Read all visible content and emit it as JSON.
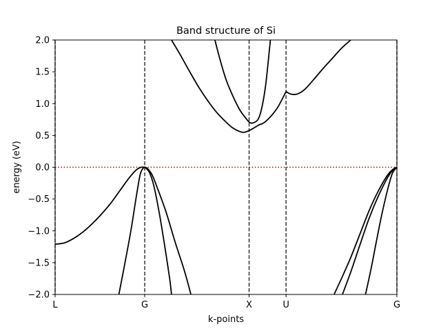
{
  "chart_data": {
    "type": "line",
    "title": "Band structure of Si",
    "xlabel": "k-points",
    "ylabel": "energy (eV)",
    "xlim": [
      0,
      3.7
    ],
    "ylim": [
      -2.0,
      2.0
    ],
    "yticks": [
      -2.0,
      -1.5,
      -1.0,
      -0.5,
      0.0,
      0.5,
      1.0,
      1.5,
      2.0
    ],
    "ytick_labels": [
      "−2.0",
      "−1.5",
      "−1.0",
      "−0.5",
      "0.0",
      "0.5",
      "1.0",
      "1.5",
      "2.0"
    ],
    "kpoints": [
      {
        "label": "L",
        "x": 0
      },
      {
        "label": "G",
        "x": 0.97
      },
      {
        "label": "X",
        "x": 2.1
      },
      {
        "label": "U",
        "x": 2.5
      },
      {
        "label": "G",
        "x": 3.7
      }
    ],
    "fermi_level": 0.0,
    "colors": {
      "bands": "#000000",
      "fermi": "#cc0000",
      "kpoint_lines": "#333333"
    },
    "series": [
      {
        "values": [
          [
            0,
            -1.21
          ],
          [
            0.1,
            -1.19
          ],
          [
            0.2,
            -1.12
          ],
          [
            0.3,
            -1.02
          ],
          [
            0.4,
            -0.89
          ],
          [
            0.5,
            -0.74
          ],
          [
            0.6,
            -0.57
          ],
          [
            0.7,
            -0.37
          ],
          [
            0.8,
            -0.17
          ],
          [
            0.88,
            -0.04
          ],
          [
            0.93,
            0.0
          ]
        ]
      },
      {
        "values": [
          [
            0.69,
            -2.0
          ],
          [
            0.75,
            -1.55
          ],
          [
            0.82,
            -1.0
          ],
          [
            0.88,
            -0.45
          ],
          [
            0.92,
            -0.12
          ],
          [
            0.95,
            -0.02
          ],
          [
            0.97,
            0.0
          ]
        ]
      },
      {
        "values": [
          [
            0.93,
            0.0
          ],
          [
            0.97,
            0.0
          ],
          [
            1.0,
            -0.02
          ],
          [
            1.05,
            -0.12
          ],
          [
            1.1,
            -0.3
          ],
          [
            1.2,
            -0.7
          ],
          [
            1.3,
            -1.18
          ],
          [
            1.4,
            -1.63
          ],
          [
            1.47,
            -2.0
          ]
        ]
      },
      {
        "values": [
          [
            0.97,
            0.0
          ],
          [
            1.02,
            -0.08
          ],
          [
            1.07,
            -0.3
          ],
          [
            1.13,
            -0.74
          ],
          [
            1.19,
            -1.27
          ],
          [
            1.24,
            -1.75
          ],
          [
            1.26,
            -2.0
          ]
        ]
      },
      {
        "values": [
          [
            1.26,
            2.0
          ],
          [
            1.35,
            1.78
          ],
          [
            1.45,
            1.52
          ],
          [
            1.55,
            1.27
          ],
          [
            1.65,
            1.05
          ],
          [
            1.75,
            0.86
          ],
          [
            1.85,
            0.71
          ],
          [
            1.92,
            0.62
          ],
          [
            2.0,
            0.56
          ],
          [
            2.05,
            0.55
          ],
          [
            2.12,
            0.59
          ],
          [
            2.2,
            0.66
          ],
          [
            2.28,
            0.72
          ],
          [
            2.4,
            0.92
          ],
          [
            2.5,
            1.19
          ]
        ]
      },
      {
        "values": [
          [
            1.73,
            2.0
          ],
          [
            1.78,
            1.72
          ],
          [
            1.85,
            1.38
          ],
          [
            1.93,
            1.1
          ],
          [
            2.0,
            0.9
          ],
          [
            2.07,
            0.76
          ],
          [
            2.11,
            0.7
          ],
          [
            2.15,
            0.7
          ],
          [
            2.2,
            0.76
          ],
          [
            2.24,
            0.95
          ],
          [
            2.28,
            1.3
          ],
          [
            2.32,
            1.85
          ],
          [
            2.33,
            2.0
          ]
        ]
      },
      {
        "values": [
          [
            2.5,
            1.19
          ],
          [
            2.55,
            1.15
          ],
          [
            2.62,
            1.15
          ],
          [
            2.7,
            1.22
          ],
          [
            2.8,
            1.38
          ],
          [
            2.9,
            1.55
          ],
          [
            3.0,
            1.71
          ],
          [
            3.1,
            1.87
          ],
          [
            3.2,
            2.0
          ]
        ]
      },
      {
        "values": [
          [
            3.02,
            -2.0
          ],
          [
            3.1,
            -1.75
          ],
          [
            3.2,
            -1.42
          ],
          [
            3.3,
            -1.05
          ],
          [
            3.4,
            -0.68
          ],
          [
            3.5,
            -0.37
          ],
          [
            3.6,
            -0.12
          ],
          [
            3.66,
            -0.03
          ],
          [
            3.7,
            0.0
          ]
        ]
      },
      {
        "values": [
          [
            3.11,
            -2.0
          ],
          [
            3.2,
            -1.65
          ],
          [
            3.3,
            -1.22
          ],
          [
            3.4,
            -0.8
          ],
          [
            3.5,
            -0.45
          ],
          [
            3.6,
            -0.16
          ],
          [
            3.66,
            -0.04
          ],
          [
            3.7,
            0.0
          ]
        ]
      },
      {
        "values": [
          [
            3.36,
            -2.0
          ],
          [
            3.42,
            -1.6
          ],
          [
            3.48,
            -1.15
          ],
          [
            3.54,
            -0.72
          ],
          [
            3.6,
            -0.35
          ],
          [
            3.65,
            -0.1
          ],
          [
            3.7,
            0.0
          ]
        ]
      }
    ]
  }
}
